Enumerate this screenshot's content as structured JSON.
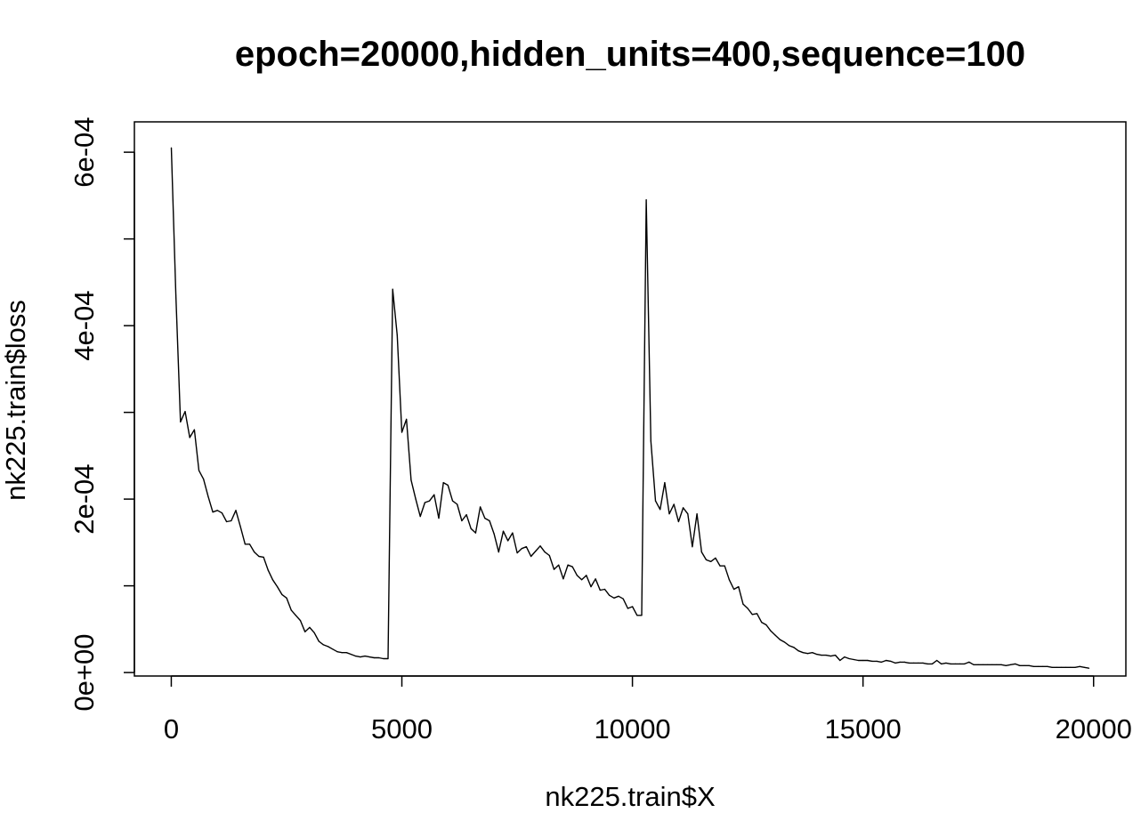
{
  "chart_data": {
    "type": "line",
    "title": "epoch=20000,hidden_units=400,sequence=100",
    "xlabel": "nk225.train$X",
    "ylabel": "nk225.train$loss",
    "xlim": [
      -800,
      20700
    ],
    "ylim": [
      -4e-06,
      0.000635
    ],
    "x_ticks": [
      0,
      5000,
      10000,
      15000,
      20000
    ],
    "x_tick_labels": [
      "0",
      "5000",
      "10000",
      "15000",
      "20000"
    ],
    "y_ticks": [
      0,
      0.0001,
      0.0002,
      0.0003,
      0.0004,
      0.0005,
      0.0006
    ],
    "y_tick_labels": [
      "0e+00",
      "",
      "2e-04",
      "",
      "4e-04",
      "",
      "6e-04"
    ],
    "grid": false,
    "legend": "none",
    "line_color": "#000000",
    "series": [
      {
        "x": [
          0,
          100,
          200,
          300,
          400,
          500,
          600,
          700,
          800,
          900,
          1000,
          1100,
          1200,
          1300,
          1400,
          1500,
          1600,
          1700,
          1800,
          1900,
          2000,
          2100,
          2200,
          2300,
          2400,
          2500,
          2600,
          2700,
          2800,
          2900,
          3000,
          3100,
          3200,
          3300,
          3400,
          3500,
          3600,
          3700,
          3800,
          3900,
          4000,
          4100,
          4200,
          4300,
          4400,
          4500,
          4600,
          4700,
          4800,
          4900,
          5000,
          5100,
          5200,
          5300,
          5400,
          5500,
          5600,
          5700,
          5800,
          5900,
          6000,
          6100,
          6200,
          6300,
          6400,
          6500,
          6600,
          6700,
          6800,
          6900,
          7000,
          7100,
          7200,
          7300,
          7400,
          7500,
          7600,
          7700,
          7800,
          7900,
          8000,
          8100,
          8200,
          8300,
          8400,
          8500,
          8600,
          8700,
          8800,
          8900,
          9000,
          9100,
          9200,
          9300,
          9400,
          9500,
          9600,
          9700,
          9800,
          9900,
          10000,
          10100,
          10200,
          10300,
          10400,
          10500,
          10600,
          10700,
          10800,
          10900,
          11000,
          11100,
          11200,
          11300,
          11400,
          11500,
          11600,
          11700,
          11800,
          11900,
          12000,
          12100,
          12200,
          12300,
          12400,
          12500,
          12600,
          12700,
          12800,
          12900,
          13000,
          13100,
          13200,
          13300,
          13400,
          13500,
          13600,
          13700,
          13800,
          13900,
          14000,
          14100,
          14200,
          14300,
          14400,
          14500,
          14600,
          14700,
          14800,
          14900,
          15000,
          15100,
          15200,
          15300,
          15400,
          15500,
          15600,
          15700,
          15800,
          15900,
          16000,
          16100,
          16200,
          16300,
          16400,
          16500,
          16600,
          16700,
          16800,
          16900,
          17000,
          17100,
          17200,
          17300,
          17400,
          17500,
          17600,
          17700,
          17800,
          17900,
          18000,
          18100,
          18200,
          18300,
          18400,
          18500,
          18600,
          18700,
          18800,
          18900,
          19000,
          19100,
          19200,
          19300,
          19400,
          19500,
          19600,
          19700,
          19800,
          19900
        ],
        "values": [
          0.000605,
          0.000435,
          0.000289,
          0.000301,
          0.000271,
          0.00028,
          0.000233,
          0.000223,
          0.000203,
          0.000185,
          0.000187,
          0.000184,
          0.000174,
          0.000175,
          0.000187,
          0.000168,
          0.000148,
          0.000148,
          0.000139,
          0.000134,
          0.000133,
          0.000118,
          0.000107,
          9.9e-05,
          9e-05,
          8.6e-05,
          7.2e-05,
          6.6e-05,
          6e-05,
          4.7e-05,
          5.2e-05,
          4.6e-05,
          3.6e-05,
          3.2e-05,
          3e-05,
          2.7e-05,
          2.4e-05,
          2.3e-05,
          2.3e-05,
          2.1e-05,
          1.9e-05,
          1.8e-05,
          1.9e-05,
          1.8e-05,
          1.7e-05,
          1.7e-05,
          1.6e-05,
          1.6e-05,
          0.000442,
          0.000389,
          0.000277,
          0.000292,
          0.000222,
          0.0002,
          0.00018,
          0.000196,
          0.000198,
          0.000205,
          0.000178,
          0.000219,
          0.000216,
          0.000198,
          0.000194,
          0.000175,
          0.000182,
          0.000166,
          0.000161,
          0.000191,
          0.000178,
          0.000175,
          0.00016,
          0.000139,
          0.000163,
          0.000152,
          0.000161,
          0.000138,
          0.000143,
          0.000145,
          0.000134,
          0.00014,
          0.000146,
          0.000139,
          0.000135,
          0.000119,
          0.000124,
          0.000108,
          0.000124,
          0.000122,
          0.000112,
          0.000107,
          0.000112,
          9.9e-05,
          0.000108,
          9.5e-05,
          9.6e-05,
          8.9e-05,
          8.6e-05,
          8.8e-05,
          8.5e-05,
          7.4e-05,
          7.6e-05,
          6.6e-05,
          6.6e-05,
          0.000545,
          0.000267,
          0.000198,
          0.000188,
          0.000219,
          0.000183,
          0.000194,
          0.000174,
          0.00019,
          0.000183,
          0.000145,
          0.000183,
          0.000139,
          0.00013,
          0.000128,
          0.000132,
          0.000123,
          0.000123,
          0.000107,
          9.6e-05,
          9.9e-05,
          7.9e-05,
          7.4e-05,
          6.7e-05,
          6.8e-05,
          5.8e-05,
          5.5e-05,
          4.8e-05,
          4.3e-05,
          3.8e-05,
          3.5e-05,
          3.1e-05,
          2.9e-05,
          2.5e-05,
          2.3e-05,
          2.2e-05,
          2.3e-05,
          2.1e-05,
          2e-05,
          2e-05,
          1.9e-05,
          2e-05,
          1.4e-05,
          1.8e-05,
          1.6e-05,
          1.5e-05,
          1.4e-05,
          1.4e-05,
          1.4e-05,
          1.3e-05,
          1.3e-05,
          1.2e-05,
          1.4e-05,
          1.3e-05,
          1.1e-05,
          1.2e-05,
          1.2e-05,
          1.1e-05,
          1.1e-05,
          1.1e-05,
          1.1e-05,
          1e-05,
          1e-05,
          1.4e-05,
          1e-05,
          1.1e-05,
          1e-05,
          1e-05,
          1e-05,
          1e-05,
          1.2e-05,
          9e-06,
          9e-06,
          9e-06,
          9e-06,
          9e-06,
          9e-06,
          9e-06,
          8e-06,
          9e-06,
          1e-05,
          8e-06,
          8e-06,
          8e-06,
          7e-06,
          7e-06,
          7e-06,
          7e-06,
          6e-06,
          6e-06,
          6e-06,
          6e-06,
          6e-06,
          6e-06,
          7e-06,
          6e-06,
          5e-06
        ]
      }
    ]
  }
}
